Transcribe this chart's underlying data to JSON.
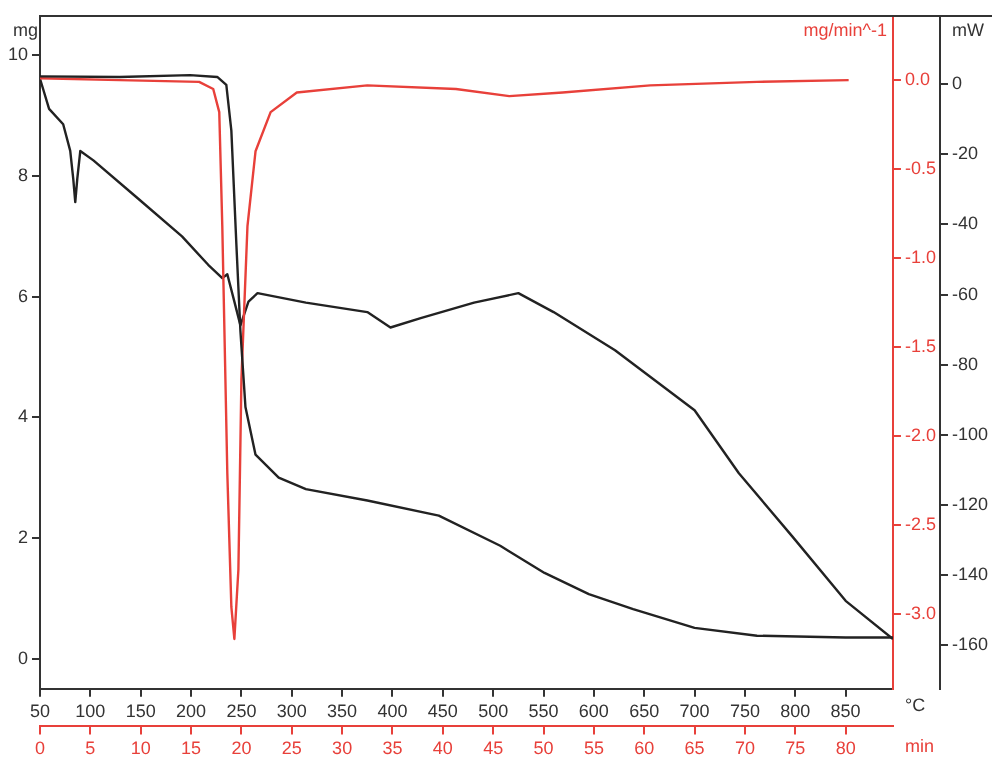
{
  "chart_data": {
    "type": "line",
    "xlabel": "°C",
    "x2label": "min",
    "ylabel": "mg",
    "y2label": "mg/min^-1",
    "y3label": "mW",
    "xlim": [
      50,
      897
    ],
    "xticks": [
      50,
      100,
      150,
      200,
      250,
      300,
      350,
      400,
      450,
      500,
      550,
      600,
      650,
      700,
      750,
      800,
      850
    ],
    "x2lim": [
      0,
      84.7
    ],
    "x2ticks": [
      0,
      5,
      10,
      15,
      20,
      25,
      30,
      35,
      40,
      45,
      50,
      55,
      60,
      65,
      70,
      75,
      80
    ],
    "ylim": [
      -0.5,
      10.65
    ],
    "yticks": [
      0,
      2,
      4,
      6,
      8,
      10
    ],
    "y2lim": [
      -3.42,
      0.36
    ],
    "y2ticks": [
      {
        "value": 0,
        "label": "0.0"
      },
      -0.5,
      {
        "value": -1,
        "label": "-1.0"
      },
      -1.5,
      {
        "value": -2,
        "label": "-2.0"
      },
      -2.5,
      {
        "value": -3,
        "label": "-3.0"
      }
    ],
    "y3lim": [
      -172.5,
      19.5
    ],
    "y3ticks": [
      0,
      -20,
      -40,
      -60,
      -80,
      -100,
      -120,
      -140,
      -160
    ],
    "marker": "none",
    "grid": false,
    "legend": false,
    "series": [
      {
        "color": "#222222",
        "axis": "y",
        "x": [
          50,
          129,
          199,
          226,
          235,
          240,
          245,
          249,
          254,
          264,
          287,
          314,
          375,
          446,
          507,
          551,
          595,
          639,
          700,
          762,
          850,
          897
        ],
        "values": [
          9.65,
          9.64,
          9.67,
          9.64,
          9.51,
          8.75,
          6.86,
          5.43,
          4.17,
          3.38,
          3.0,
          2.81,
          2.62,
          2.37,
          1.87,
          1.42,
          1.07,
          0.82,
          0.51,
          0.38,
          0.35,
          0.35
        ]
      },
      {
        "color": "#e8403a",
        "axis": "y2",
        "x": [
          50,
          129,
          208,
          222,
          228,
          231,
          236,
          240,
          243,
          247,
          250,
          256,
          264,
          279,
          305,
          375,
          463,
          516,
          569,
          656,
          762,
          853
        ],
        "values": [
          0.01,
          0,
          -0.01,
          -0.05,
          -0.18,
          -0.82,
          -2.21,
          -2.96,
          -3.14,
          -2.75,
          -1.68,
          -0.82,
          -0.4,
          -0.18,
          -0.07,
          -0.03,
          -0.05,
          -0.09,
          -0.07,
          -0.03,
          -0.01,
          0
        ]
      },
      {
        "color": "#222222",
        "axis": "y3",
        "x": [
          50,
          59,
          73,
          80,
          83,
          85,
          87,
          90,
          103,
          147,
          191,
          217,
          231,
          236,
          243,
          249,
          257,
          266,
          314,
          375,
          398,
          428,
          481,
          525,
          560,
          621,
          700,
          744,
          797,
          850,
          897
        ],
        "values": [
          1.6,
          -7,
          -11.4,
          -19,
          -27,
          -33.6,
          -27,
          -19,
          -21.7,
          -32.5,
          -43.4,
          -51.5,
          -55.3,
          -54.2,
          -62,
          -68.8,
          -62,
          -59.6,
          -62.3,
          -65,
          -69.4,
          -66.7,
          -62.3,
          -59.6,
          -65,
          -75.9,
          -93,
          -111,
          -129,
          -147.4,
          -158.3
        ]
      }
    ]
  }
}
